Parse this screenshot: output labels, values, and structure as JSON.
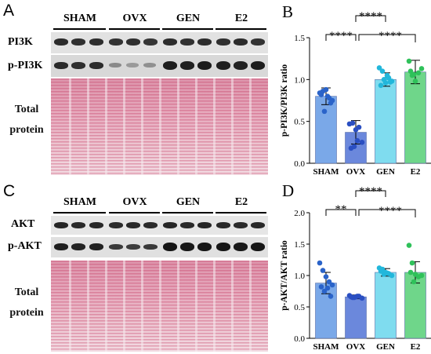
{
  "panels": {
    "A": {
      "letter": "A",
      "groups": [
        "SHAM",
        "OVX",
        "GEN",
        "E2"
      ],
      "rows": [
        "PI3K",
        "p-PI3K"
      ],
      "total_line1": "Total",
      "total_line2": "protein"
    },
    "C": {
      "letter": "C",
      "groups": [
        "SHAM",
        "OVX",
        "GEN",
        "E2"
      ],
      "rows": [
        "AKT",
        "p-AKT"
      ],
      "total_line1": "Total",
      "total_line2": "protein"
    }
  },
  "colors": {
    "SHAM": "#7aa8e8",
    "OVX": "#6b88dc",
    "GEN": "#7fdcef",
    "E2": "#6fd68a"
  },
  "chart_data": [
    {
      "letter": "B",
      "type": "bar",
      "categories": [
        "SHAM",
        "OVX",
        "GEN",
        "E2"
      ],
      "values": [
        0.8,
        0.37,
        1.0,
        1.09
      ],
      "errors": [
        0.1,
        0.14,
        0.08,
        0.14
      ],
      "points": [
        [
          0.84,
          0.86,
          0.88,
          0.78,
          0.75,
          0.82,
          0.62,
          0.8,
          0.72
        ],
        [
          0.47,
          0.48,
          0.4,
          0.43,
          0.25,
          0.18,
          0.2,
          0.27
        ],
        [
          1.14,
          1.1,
          0.96,
          1.02,
          0.98,
          0.93,
          1.0,
          1.05,
          0.97
        ],
        [
          1.22,
          1.05,
          0.98,
          1.08,
          1.13,
          1.1,
          1.06
        ]
      ],
      "ylabel": "p-PI3K/PI3K ratio",
      "ylim": [
        0,
        1.5
      ],
      "yticks": [
        "0.0",
        "0.5",
        "1.0",
        "1.5"
      ],
      "significance": [
        {
          "from": "SHAM",
          "to": "OVX",
          "label": "****"
        },
        {
          "from": "OVX",
          "to": "GEN",
          "label": "****"
        },
        {
          "from": "OVX",
          "to": "E2",
          "label": "****"
        }
      ]
    },
    {
      "letter": "D",
      "type": "bar",
      "categories": [
        "SHAM",
        "OVX",
        "GEN",
        "E2"
      ],
      "values": [
        0.88,
        0.66,
        1.05,
        1.05
      ],
      "errors": [
        0.17,
        0.03,
        0.06,
        0.17
      ],
      "points": [
        [
          1.2,
          1.08,
          0.98,
          0.9,
          0.85,
          0.82,
          0.75,
          0.8,
          0.67
        ],
        [
          0.68,
          0.65,
          0.66,
          0.67,
          0.64,
          0.66,
          0.65,
          0.67
        ],
        [
          1.12,
          1.1,
          1.05,
          1.03,
          1.0,
          1.07,
          1.02,
          1.04
        ],
        [
          1.48,
          1.2,
          1.02,
          0.98,
          1.0,
          1.05,
          0.9
        ]
      ],
      "ylabel": "p-AKT/AKT ratio",
      "ylim": [
        0,
        2.0
      ],
      "yticks": [
        "0.0",
        "0.5",
        "1.0",
        "1.5",
        "2.0"
      ],
      "significance": [
        {
          "from": "SHAM",
          "to": "OVX",
          "label": "**"
        },
        {
          "from": "OVX",
          "to": "GEN",
          "label": "****"
        },
        {
          "from": "OVX",
          "to": "E2",
          "label": "****"
        }
      ]
    }
  ]
}
